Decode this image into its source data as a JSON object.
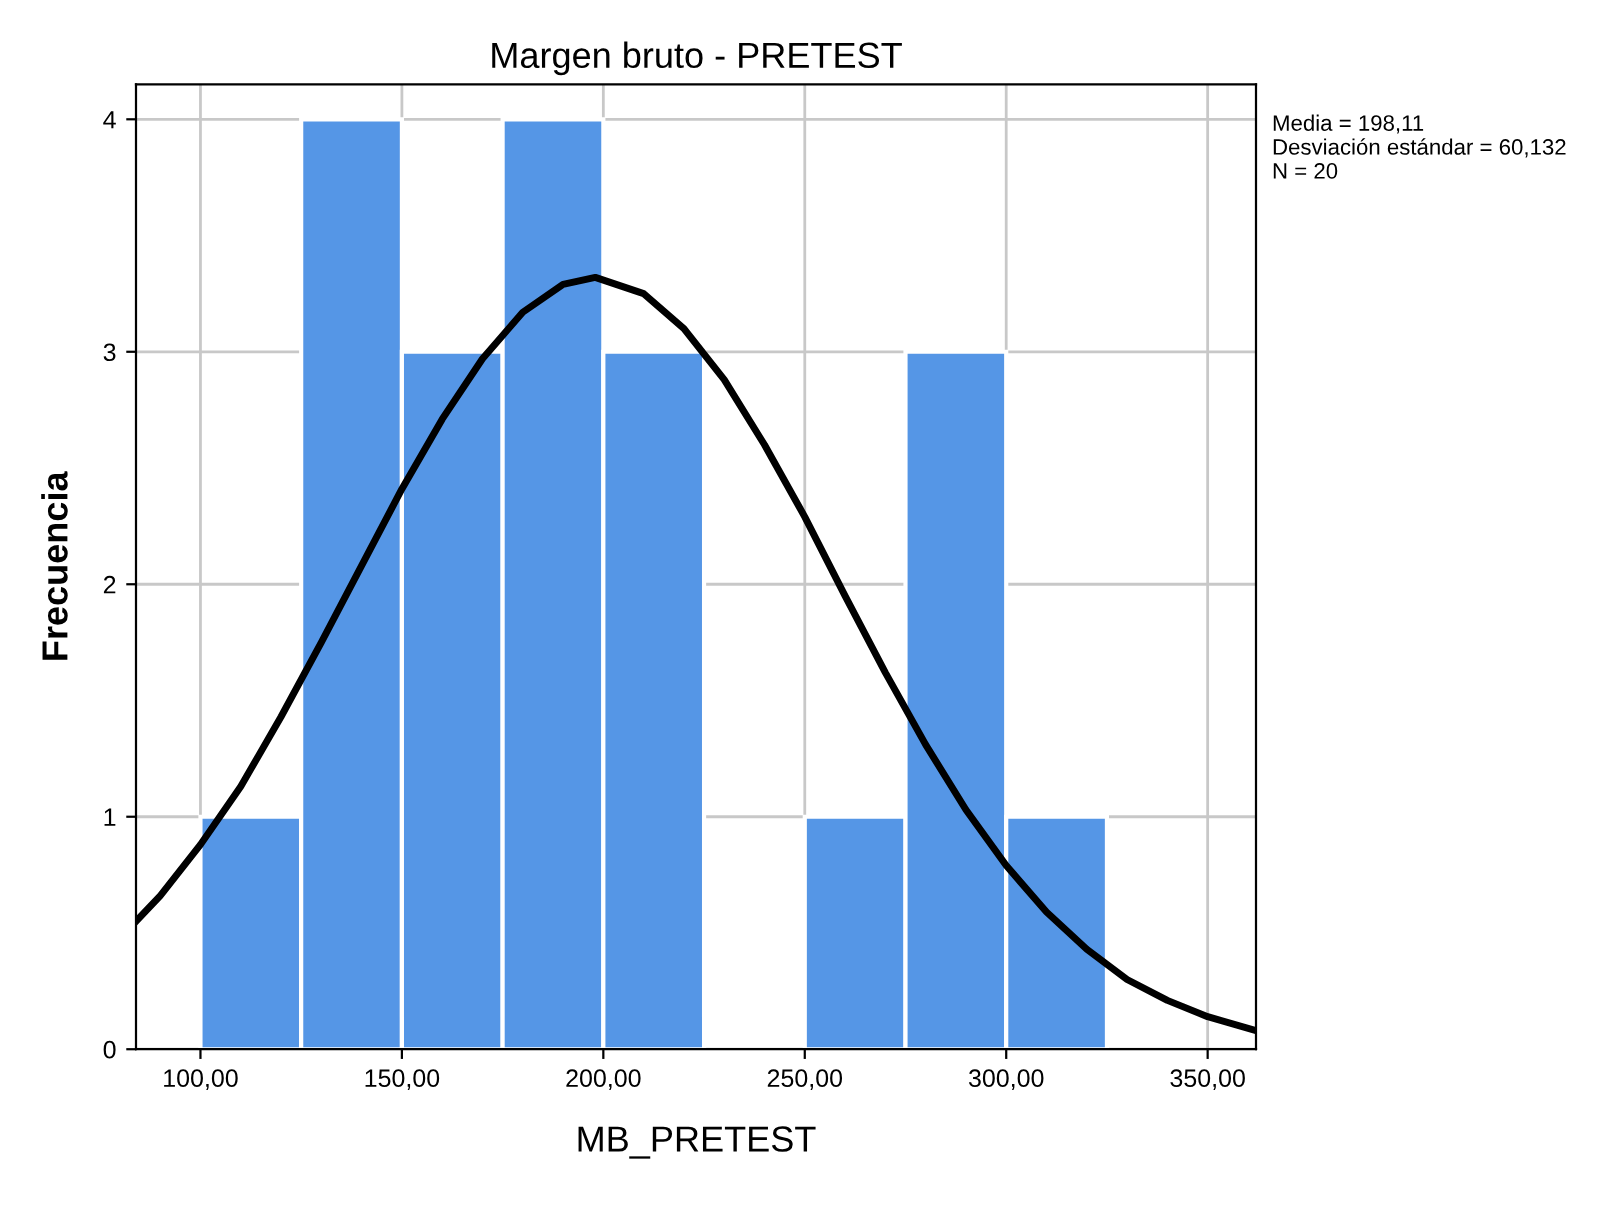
{
  "chart_data": {
    "type": "histogram",
    "title": "Margen bruto - PRETEST",
    "xlabel": "MB_PRETEST",
    "ylabel": "Frecuencia",
    "bins": [
      100,
      125,
      150,
      175,
      200,
      225,
      250,
      275,
      300,
      325
    ],
    "values": [
      1,
      4,
      3,
      4,
      3,
      0,
      1,
      3,
      1
    ],
    "color": "#5596e6",
    "series": [
      {
        "type": "line",
        "color": "#000000",
        "x": [
          84,
          90,
          100,
          110,
          120,
          130,
          140,
          150,
          160,
          170,
          180,
          190,
          198,
          210,
          220,
          230,
          240,
          250,
          260,
          270,
          280,
          290,
          300,
          310,
          320,
          330,
          340,
          350,
          362
        ],
        "values": [
          0.55,
          0.66,
          0.88,
          1.13,
          1.43,
          1.75,
          2.08,
          2.41,
          2.71,
          2.97,
          3.17,
          3.29,
          3.32,
          3.25,
          3.1,
          2.88,
          2.6,
          2.29,
          1.95,
          1.62,
          1.31,
          1.03,
          0.79,
          0.59,
          0.43,
          0.3,
          0.21,
          0.14,
          0.08
        ]
      }
    ],
    "xlim": [
      84,
      362
    ],
    "ylim": [
      0,
      4.15
    ],
    "xticks": [
      {
        "value": 100,
        "label": "100,00"
      },
      {
        "value": 150,
        "label": "150,00"
      },
      {
        "value": 200,
        "label": "200,00"
      },
      {
        "value": 250,
        "label": "250,00"
      },
      {
        "value": 300,
        "label": "300,00"
      },
      {
        "value": 350,
        "label": "350,00"
      }
    ],
    "yticks": [
      0,
      1,
      2,
      3,
      4
    ],
    "grid": true,
    "annotations": [
      "Media = 198,11\nDesviación estándar = 60,132\nN = 20"
    ]
  }
}
